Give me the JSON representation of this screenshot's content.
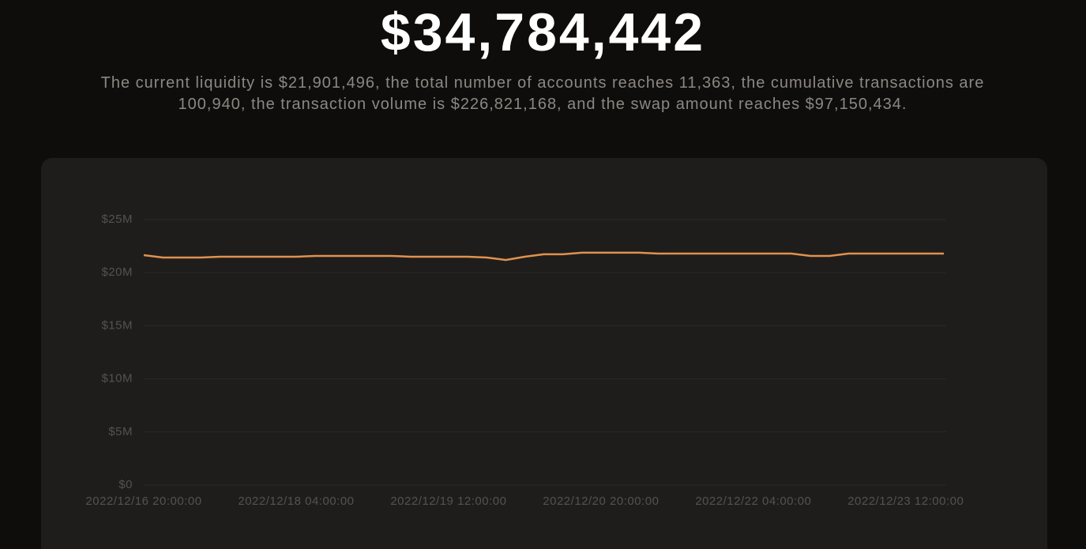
{
  "header": {
    "amount": "$34,784,442",
    "description": "The current liquidity is $21,901,496, the total number of accounts reaches 11,363, the cumulative transactions are 100,940, the transaction volume is $226,821,168, and the swap amount reaches $97,150,434."
  },
  "chart_data": {
    "type": "line",
    "categories": [
      "2022/12/16 20:00:00",
      null,
      null,
      null,
      null,
      null,
      null,
      null,
      "2022/12/18 04:00:00",
      null,
      null,
      null,
      null,
      null,
      null,
      null,
      "2022/12/19 12:00:00",
      null,
      null,
      null,
      null,
      null,
      null,
      null,
      "2022/12/20 20:00:00",
      null,
      null,
      null,
      null,
      null,
      null,
      null,
      "2022/12/22 04:00:00",
      null,
      null,
      null,
      null,
      null,
      null,
      null,
      "2022/12/23 12:00:00",
      null,
      null
    ],
    "series": [
      {
        "color": "#e0914f",
        "values": [
          21650000,
          21430000,
          21430000,
          21430000,
          21500000,
          21500000,
          21500000,
          21500000,
          21500000,
          21580000,
          21580000,
          21580000,
          21580000,
          21580000,
          21500000,
          21500000,
          21500000,
          21500000,
          21430000,
          21200000,
          21500000,
          21730000,
          21730000,
          21880000,
          21880000,
          21880000,
          21880000,
          21800000,
          21800000,
          21800000,
          21800000,
          21800000,
          21800000,
          21800000,
          21800000,
          21580000,
          21580000,
          21800000,
          21800000,
          21800000,
          21800000,
          21800000,
          21800000
        ]
      }
    ],
    "ylim": [
      0,
      25000000
    ],
    "yticks": [
      {
        "value": 0,
        "label": "$0"
      },
      {
        "value": 5000000,
        "label": "$5M"
      },
      {
        "value": 10000000,
        "label": "$10M"
      },
      {
        "value": 15000000,
        "label": "$15M"
      },
      {
        "value": 20000000,
        "label": "$20M"
      },
      {
        "value": 25000000,
        "label": "$25M"
      }
    ],
    "grid": true
  }
}
